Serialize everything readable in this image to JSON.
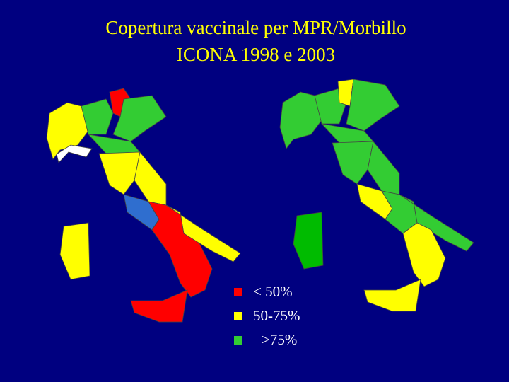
{
  "title": [
    "Copertura vaccinale per MPR/Morbillo",
    "ICONA 1998 e 2003"
  ],
  "legend": [
    {
      "label": "< 50%",
      "color": "#ff0000"
    },
    {
      "label": "50-75%",
      "color": "#ffff00"
    },
    {
      "label": ">75%",
      "color": "#33cc33"
    }
  ]
}
